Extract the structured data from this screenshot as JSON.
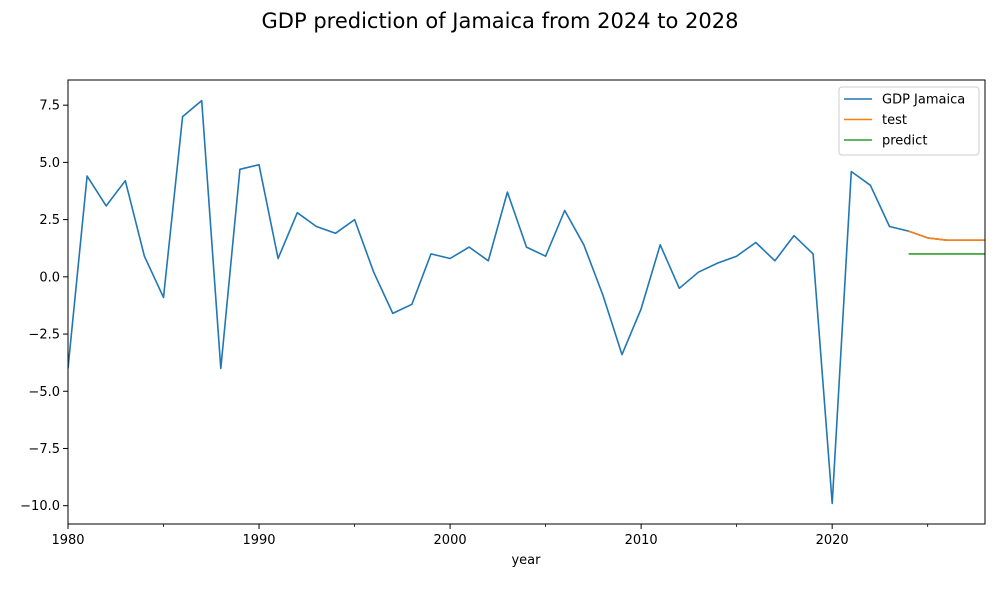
{
  "chart_data": {
    "type": "line",
    "title": "GDP prediction of Jamaica from 2024 to 2028",
    "xlabel": "year",
    "ylabel": "",
    "xlim": [
      1980,
      2028
    ],
    "ylim": [
      -10.8,
      8.6
    ],
    "xticks": [
      {
        "value": 1980,
        "label": "1980"
      },
      {
        "value": 1990,
        "label": "1990"
      },
      {
        "value": 2000,
        "label": "2000"
      },
      {
        "value": 2010,
        "label": "2010"
      },
      {
        "value": 2020,
        "label": "2020"
      }
    ],
    "x_minor_ticks": [
      1985,
      1995,
      2005,
      2015,
      2025
    ],
    "yticks": [
      {
        "value": 7.5,
        "label": "7.5"
      },
      {
        "value": 5.0,
        "label": "5.0"
      },
      {
        "value": 2.5,
        "label": "2.5"
      },
      {
        "value": 0.0,
        "label": "0.0"
      },
      {
        "value": -2.5,
        "label": "−2.5"
      },
      {
        "value": -5.0,
        "label": "−5.0"
      },
      {
        "value": -7.5,
        "label": "−7.5"
      },
      {
        "value": -10.0,
        "label": "−10.0"
      }
    ],
    "grid": false,
    "legend_position": "top-right",
    "series": [
      {
        "name": "GDP Jamaica",
        "color": "#1f77b4",
        "x": [
          1980,
          1981,
          1982,
          1983,
          1984,
          1985,
          1986,
          1987,
          1988,
          1989,
          1990,
          1991,
          1992,
          1993,
          1994,
          1995,
          1996,
          1997,
          1998,
          1999,
          2000,
          2001,
          2002,
          2003,
          2004,
          2005,
          2006,
          2007,
          2008,
          2009,
          2010,
          2011,
          2012,
          2013,
          2014,
          2015,
          2016,
          2017,
          2018,
          2019,
          2020,
          2021,
          2022,
          2023,
          2024,
          2025,
          2026,
          2027,
          2028
        ],
        "y": [
          -4.0,
          4.4,
          3.1,
          4.2,
          0.9,
          -0.9,
          7.0,
          7.7,
          -4.0,
          4.7,
          4.9,
          0.8,
          2.8,
          2.2,
          1.9,
          2.5,
          0.2,
          -1.6,
          -1.2,
          1.0,
          0.8,
          1.3,
          0.7,
          3.7,
          1.3,
          0.9,
          2.9,
          1.4,
          -0.8,
          -3.4,
          -1.4,
          1.4,
          -0.5,
          0.2,
          0.6,
          0.9,
          1.5,
          0.7,
          1.8,
          1.0,
          -9.9,
          4.6,
          4.0,
          2.2,
          2.0,
          1.7,
          1.6,
          1.6,
          1.6
        ]
      },
      {
        "name": "test",
        "color": "#ff7f0e",
        "x": [
          2024,
          2025,
          2026,
          2027,
          2028
        ],
        "y": [
          2.0,
          1.7,
          1.6,
          1.6,
          1.6
        ]
      },
      {
        "name": "predict",
        "color": "#2ca02c",
        "x": [
          2024,
          2025,
          2026,
          2027,
          2028
        ],
        "y": [
          1.0,
          1.0,
          1.0,
          1.0,
          1.0
        ]
      }
    ]
  }
}
